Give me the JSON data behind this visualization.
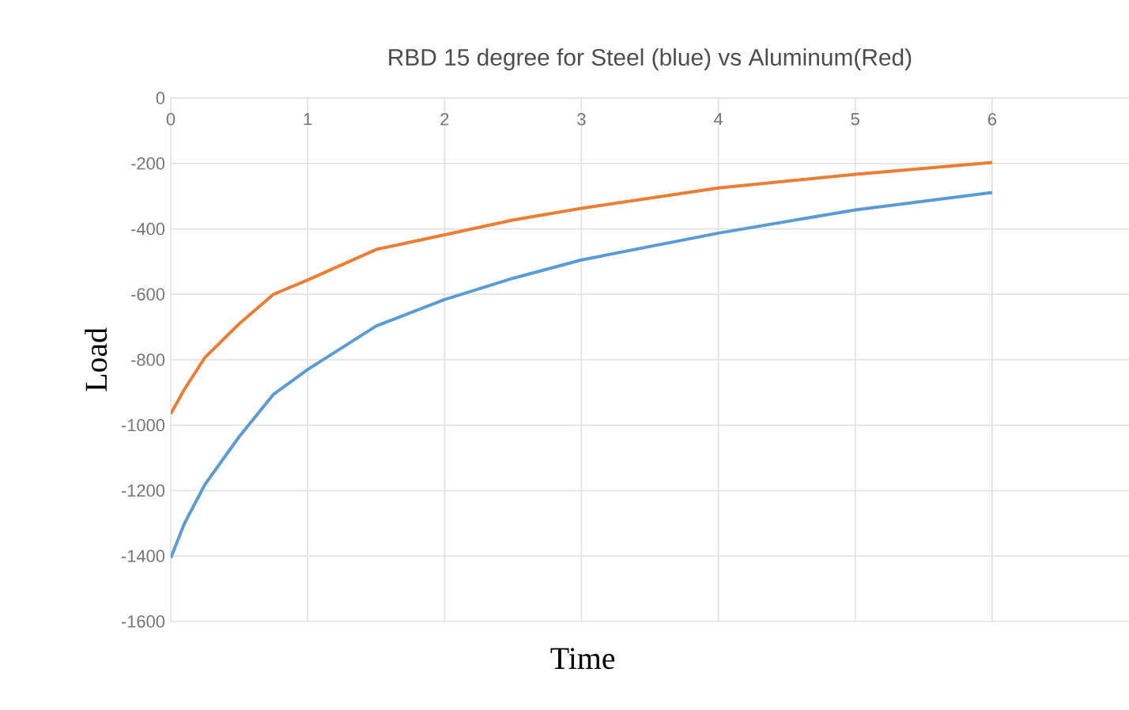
{
  "chart_data": {
    "type": "line",
    "title": "RBD 15 degree for Steel (blue) vs Aluminum(Red)",
    "xlabel": "Time",
    "ylabel": "Load",
    "series": [
      {
        "color": "#5b9bd5",
        "x": [
          0,
          0.1,
          0.25,
          0.5,
          0.75,
          1,
          1.5,
          2,
          2.5,
          3,
          4,
          5,
          6
        ],
        "values": [
          -1406,
          -1300,
          -1181,
          -1035,
          -906,
          -830,
          -697,
          -616,
          -551,
          -495,
          -413,
          -342,
          -289
        ]
      },
      {
        "color": "#ed7d31",
        "x": [
          0,
          0.1,
          0.25,
          0.5,
          0.75,
          1,
          1.5,
          2,
          2.5,
          3,
          4,
          5,
          6
        ],
        "values": [
          -965,
          -890,
          -793,
          -690,
          -600,
          -556,
          -463,
          -418,
          -373,
          -337,
          -275,
          -233,
          -197
        ]
      }
    ],
    "xlim": [
      0,
      7
    ],
    "ylim": [
      -1600,
      0
    ],
    "xticks": [
      0,
      1,
      2,
      3,
      4,
      5,
      6
    ],
    "yticks": [
      0,
      -200,
      -400,
      -600,
      -800,
      -1000,
      -1200,
      -1400,
      -1600
    ],
    "grid": true,
    "marker": "none",
    "line_style": "solid"
  }
}
